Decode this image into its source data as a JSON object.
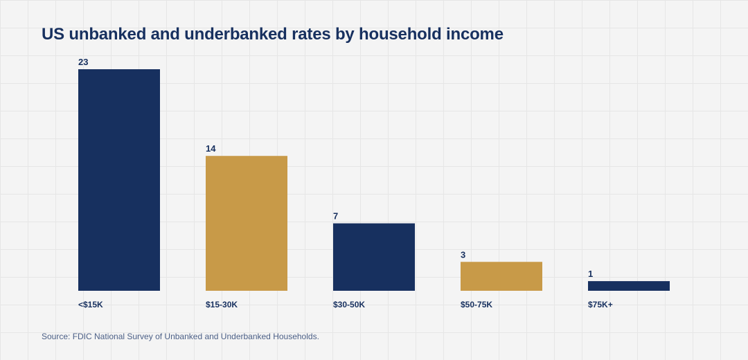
{
  "chart_data": {
    "type": "bar",
    "title": "US unbanked and underbanked rates by household income",
    "categories": [
      "<$15K",
      "$15-30K",
      "$30-50K",
      "$50-75K",
      "$75K+"
    ],
    "values": [
      23,
      14,
      7,
      3,
      1
    ],
    "colors": [
      "#17305f",
      "#c89a48",
      "#17305f",
      "#c89a48",
      "#17305f"
    ],
    "xlabel": "",
    "ylabel": "",
    "ylim": [
      0,
      23
    ],
    "source": "Source: FDIC National Survey of Unbanked and Underbanked Households."
  },
  "style": {
    "label_color": "#17305f"
  }
}
